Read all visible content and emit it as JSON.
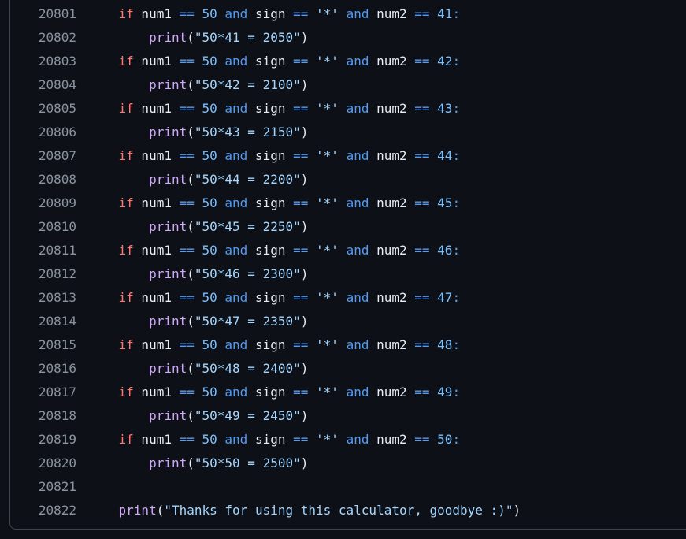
{
  "editor": {
    "language_hint": "python",
    "colors": {
      "background": "#0d1117",
      "border": "#3d444d",
      "line_number": "#8b949e",
      "text": "#e6edf3",
      "keyword": "#ff7b72",
      "operator": "#539bf5",
      "number": "#79c0ff",
      "string": "#a5d6ff",
      "function": "#d2a8ff"
    },
    "lines": [
      {
        "number": "20801",
        "tokens": [
          [
            "p",
            "    "
          ],
          [
            "k",
            "if"
          ],
          [
            "p",
            " num1 "
          ],
          [
            "o",
            "=="
          ],
          [
            "p",
            " "
          ],
          [
            "n",
            "50"
          ],
          [
            "p",
            " "
          ],
          [
            "o",
            "and"
          ],
          [
            "p",
            " sign "
          ],
          [
            "o",
            "=="
          ],
          [
            "p",
            " "
          ],
          [
            "s",
            "'*'"
          ],
          [
            "p",
            " "
          ],
          [
            "o",
            "and"
          ],
          [
            "p",
            " num2 "
          ],
          [
            "o",
            "=="
          ],
          [
            "p",
            " "
          ],
          [
            "n",
            "41"
          ],
          [
            "o",
            ":"
          ]
        ]
      },
      {
        "number": "20802",
        "tokens": [
          [
            "p",
            "        "
          ],
          [
            "f",
            "print"
          ],
          [
            "p",
            "("
          ],
          [
            "s",
            "\"50*41 = 2050\""
          ],
          [
            "p",
            ")"
          ]
        ]
      },
      {
        "number": "20803",
        "tokens": [
          [
            "p",
            "    "
          ],
          [
            "k",
            "if"
          ],
          [
            "p",
            " num1 "
          ],
          [
            "o",
            "=="
          ],
          [
            "p",
            " "
          ],
          [
            "n",
            "50"
          ],
          [
            "p",
            " "
          ],
          [
            "o",
            "and"
          ],
          [
            "p",
            " sign "
          ],
          [
            "o",
            "=="
          ],
          [
            "p",
            " "
          ],
          [
            "s",
            "'*'"
          ],
          [
            "p",
            " "
          ],
          [
            "o",
            "and"
          ],
          [
            "p",
            " num2 "
          ],
          [
            "o",
            "=="
          ],
          [
            "p",
            " "
          ],
          [
            "n",
            "42"
          ],
          [
            "o",
            ":"
          ]
        ]
      },
      {
        "number": "20804",
        "tokens": [
          [
            "p",
            "        "
          ],
          [
            "f",
            "print"
          ],
          [
            "p",
            "("
          ],
          [
            "s",
            "\"50*42 = 2100\""
          ],
          [
            "p",
            ")"
          ]
        ]
      },
      {
        "number": "20805",
        "tokens": [
          [
            "p",
            "    "
          ],
          [
            "k",
            "if"
          ],
          [
            "p",
            " num1 "
          ],
          [
            "o",
            "=="
          ],
          [
            "p",
            " "
          ],
          [
            "n",
            "50"
          ],
          [
            "p",
            " "
          ],
          [
            "o",
            "and"
          ],
          [
            "p",
            " sign "
          ],
          [
            "o",
            "=="
          ],
          [
            "p",
            " "
          ],
          [
            "s",
            "'*'"
          ],
          [
            "p",
            " "
          ],
          [
            "o",
            "and"
          ],
          [
            "p",
            " num2 "
          ],
          [
            "o",
            "=="
          ],
          [
            "p",
            " "
          ],
          [
            "n",
            "43"
          ],
          [
            "o",
            ":"
          ]
        ]
      },
      {
        "number": "20806",
        "tokens": [
          [
            "p",
            "        "
          ],
          [
            "f",
            "print"
          ],
          [
            "p",
            "("
          ],
          [
            "s",
            "\"50*43 = 2150\""
          ],
          [
            "p",
            ")"
          ]
        ]
      },
      {
        "number": "20807",
        "tokens": [
          [
            "p",
            "    "
          ],
          [
            "k",
            "if"
          ],
          [
            "p",
            " num1 "
          ],
          [
            "o",
            "=="
          ],
          [
            "p",
            " "
          ],
          [
            "n",
            "50"
          ],
          [
            "p",
            " "
          ],
          [
            "o",
            "and"
          ],
          [
            "p",
            " sign "
          ],
          [
            "o",
            "=="
          ],
          [
            "p",
            " "
          ],
          [
            "s",
            "'*'"
          ],
          [
            "p",
            " "
          ],
          [
            "o",
            "and"
          ],
          [
            "p",
            " num2 "
          ],
          [
            "o",
            "=="
          ],
          [
            "p",
            " "
          ],
          [
            "n",
            "44"
          ],
          [
            "o",
            ":"
          ]
        ]
      },
      {
        "number": "20808",
        "tokens": [
          [
            "p",
            "        "
          ],
          [
            "f",
            "print"
          ],
          [
            "p",
            "("
          ],
          [
            "s",
            "\"50*44 = 2200\""
          ],
          [
            "p",
            ")"
          ]
        ]
      },
      {
        "number": "20809",
        "tokens": [
          [
            "p",
            "    "
          ],
          [
            "k",
            "if"
          ],
          [
            "p",
            " num1 "
          ],
          [
            "o",
            "=="
          ],
          [
            "p",
            " "
          ],
          [
            "n",
            "50"
          ],
          [
            "p",
            " "
          ],
          [
            "o",
            "and"
          ],
          [
            "p",
            " sign "
          ],
          [
            "o",
            "=="
          ],
          [
            "p",
            " "
          ],
          [
            "s",
            "'*'"
          ],
          [
            "p",
            " "
          ],
          [
            "o",
            "and"
          ],
          [
            "p",
            " num2 "
          ],
          [
            "o",
            "=="
          ],
          [
            "p",
            " "
          ],
          [
            "n",
            "45"
          ],
          [
            "o",
            ":"
          ]
        ]
      },
      {
        "number": "20810",
        "tokens": [
          [
            "p",
            "        "
          ],
          [
            "f",
            "print"
          ],
          [
            "p",
            "("
          ],
          [
            "s",
            "\"50*45 = 2250\""
          ],
          [
            "p",
            ")"
          ]
        ]
      },
      {
        "number": "20811",
        "tokens": [
          [
            "p",
            "    "
          ],
          [
            "k",
            "if"
          ],
          [
            "p",
            " num1 "
          ],
          [
            "o",
            "=="
          ],
          [
            "p",
            " "
          ],
          [
            "n",
            "50"
          ],
          [
            "p",
            " "
          ],
          [
            "o",
            "and"
          ],
          [
            "p",
            " sign "
          ],
          [
            "o",
            "=="
          ],
          [
            "p",
            " "
          ],
          [
            "s",
            "'*'"
          ],
          [
            "p",
            " "
          ],
          [
            "o",
            "and"
          ],
          [
            "p",
            " num2 "
          ],
          [
            "o",
            "=="
          ],
          [
            "p",
            " "
          ],
          [
            "n",
            "46"
          ],
          [
            "o",
            ":"
          ]
        ]
      },
      {
        "number": "20812",
        "tokens": [
          [
            "p",
            "        "
          ],
          [
            "f",
            "print"
          ],
          [
            "p",
            "("
          ],
          [
            "s",
            "\"50*46 = 2300\""
          ],
          [
            "p",
            ")"
          ]
        ]
      },
      {
        "number": "20813",
        "tokens": [
          [
            "p",
            "    "
          ],
          [
            "k",
            "if"
          ],
          [
            "p",
            " num1 "
          ],
          [
            "o",
            "=="
          ],
          [
            "p",
            " "
          ],
          [
            "n",
            "50"
          ],
          [
            "p",
            " "
          ],
          [
            "o",
            "and"
          ],
          [
            "p",
            " sign "
          ],
          [
            "o",
            "=="
          ],
          [
            "p",
            " "
          ],
          [
            "s",
            "'*'"
          ],
          [
            "p",
            " "
          ],
          [
            "o",
            "and"
          ],
          [
            "p",
            " num2 "
          ],
          [
            "o",
            "=="
          ],
          [
            "p",
            " "
          ],
          [
            "n",
            "47"
          ],
          [
            "o",
            ":"
          ]
        ]
      },
      {
        "number": "20814",
        "tokens": [
          [
            "p",
            "        "
          ],
          [
            "f",
            "print"
          ],
          [
            "p",
            "("
          ],
          [
            "s",
            "\"50*47 = 2350\""
          ],
          [
            "p",
            ")"
          ]
        ]
      },
      {
        "number": "20815",
        "tokens": [
          [
            "p",
            "    "
          ],
          [
            "k",
            "if"
          ],
          [
            "p",
            " num1 "
          ],
          [
            "o",
            "=="
          ],
          [
            "p",
            " "
          ],
          [
            "n",
            "50"
          ],
          [
            "p",
            " "
          ],
          [
            "o",
            "and"
          ],
          [
            "p",
            " sign "
          ],
          [
            "o",
            "=="
          ],
          [
            "p",
            " "
          ],
          [
            "s",
            "'*'"
          ],
          [
            "p",
            " "
          ],
          [
            "o",
            "and"
          ],
          [
            "p",
            " num2 "
          ],
          [
            "o",
            "=="
          ],
          [
            "p",
            " "
          ],
          [
            "n",
            "48"
          ],
          [
            "o",
            ":"
          ]
        ]
      },
      {
        "number": "20816",
        "tokens": [
          [
            "p",
            "        "
          ],
          [
            "f",
            "print"
          ],
          [
            "p",
            "("
          ],
          [
            "s",
            "\"50*48 = 2400\""
          ],
          [
            "p",
            ")"
          ]
        ]
      },
      {
        "number": "20817",
        "tokens": [
          [
            "p",
            "    "
          ],
          [
            "k",
            "if"
          ],
          [
            "p",
            " num1 "
          ],
          [
            "o",
            "=="
          ],
          [
            "p",
            " "
          ],
          [
            "n",
            "50"
          ],
          [
            "p",
            " "
          ],
          [
            "o",
            "and"
          ],
          [
            "p",
            " sign "
          ],
          [
            "o",
            "=="
          ],
          [
            "p",
            " "
          ],
          [
            "s",
            "'*'"
          ],
          [
            "p",
            " "
          ],
          [
            "o",
            "and"
          ],
          [
            "p",
            " num2 "
          ],
          [
            "o",
            "=="
          ],
          [
            "p",
            " "
          ],
          [
            "n",
            "49"
          ],
          [
            "o",
            ":"
          ]
        ]
      },
      {
        "number": "20818",
        "tokens": [
          [
            "p",
            "        "
          ],
          [
            "f",
            "print"
          ],
          [
            "p",
            "("
          ],
          [
            "s",
            "\"50*49 = 2450\""
          ],
          [
            "p",
            ")"
          ]
        ]
      },
      {
        "number": "20819",
        "tokens": [
          [
            "p",
            "    "
          ],
          [
            "k",
            "if"
          ],
          [
            "p",
            " num1 "
          ],
          [
            "o",
            "=="
          ],
          [
            "p",
            " "
          ],
          [
            "n",
            "50"
          ],
          [
            "p",
            " "
          ],
          [
            "o",
            "and"
          ],
          [
            "p",
            " sign "
          ],
          [
            "o",
            "=="
          ],
          [
            "p",
            " "
          ],
          [
            "s",
            "'*'"
          ],
          [
            "p",
            " "
          ],
          [
            "o",
            "and"
          ],
          [
            "p",
            " num2 "
          ],
          [
            "o",
            "=="
          ],
          [
            "p",
            " "
          ],
          [
            "n",
            "50"
          ],
          [
            "o",
            ":"
          ]
        ]
      },
      {
        "number": "20820",
        "tokens": [
          [
            "p",
            "        "
          ],
          [
            "f",
            "print"
          ],
          [
            "p",
            "("
          ],
          [
            "s",
            "\"50*50 = 2500\""
          ],
          [
            "p",
            ")"
          ]
        ]
      },
      {
        "number": "20821",
        "tokens": []
      },
      {
        "number": "20822",
        "tokens": [
          [
            "p",
            "    "
          ],
          [
            "f",
            "print"
          ],
          [
            "p",
            "("
          ],
          [
            "s",
            "\"Thanks for using this calculator, goodbye :)\""
          ],
          [
            "p",
            ")"
          ]
        ]
      }
    ]
  }
}
